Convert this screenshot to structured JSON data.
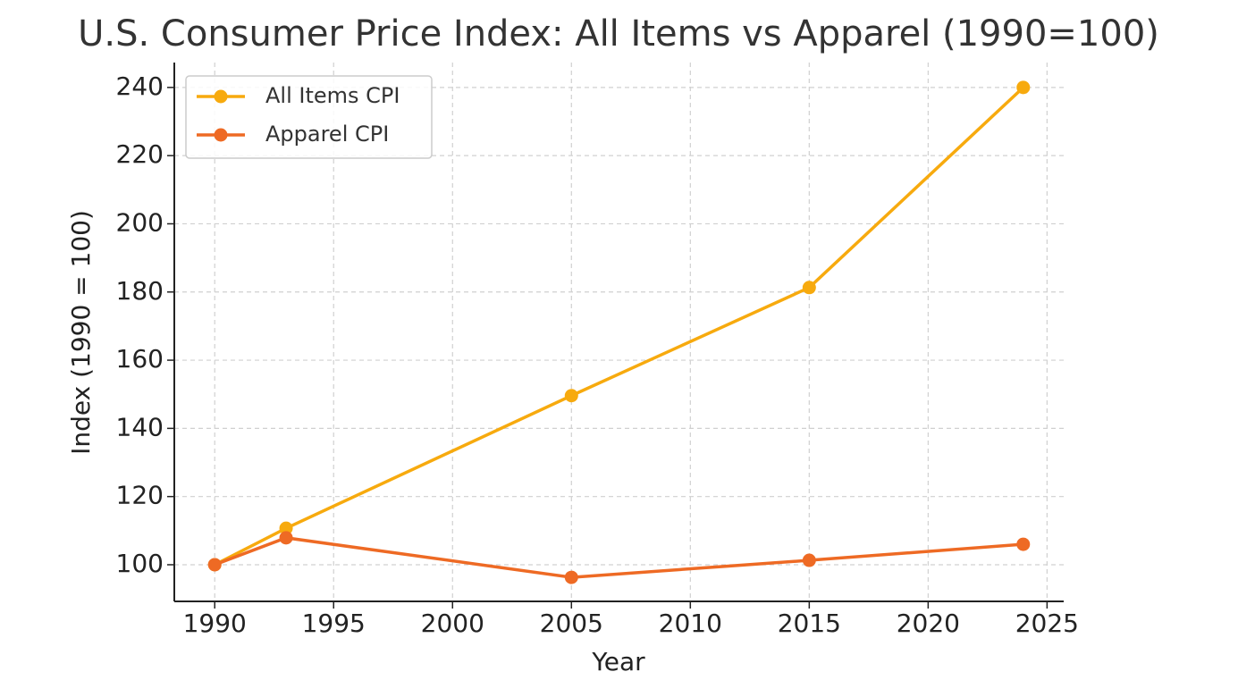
{
  "chart_data": {
    "type": "line",
    "title": "U.S. Consumer Price Index: All Items vs Apparel (1990=100)",
    "xlabel": "Year",
    "ylabel": "Index (1990 = 100)",
    "x": [
      1990,
      1993,
      2005,
      2015,
      2024
    ],
    "series": [
      {
        "name": "All Items CPI",
        "color": "#f7aa0e",
        "values": [
          100,
          110.7,
          149.6,
          181.3,
          240
        ]
      },
      {
        "name": "Apparel CPI",
        "color": "#ee6a24",
        "values": [
          100,
          107.9,
          96.3,
          101.3,
          106
        ]
      }
    ],
    "xlim": [
      1988.3,
      2025.7
    ],
    "xticks": [
      1990,
      1995,
      2000,
      2005,
      2010,
      2015,
      2020,
      2025
    ],
    "ylim": [
      89.25,
      247.3
    ],
    "yticks": [
      100,
      120,
      140,
      160,
      180,
      200,
      220,
      240
    ],
    "grid": true,
    "legend": "upper left"
  }
}
